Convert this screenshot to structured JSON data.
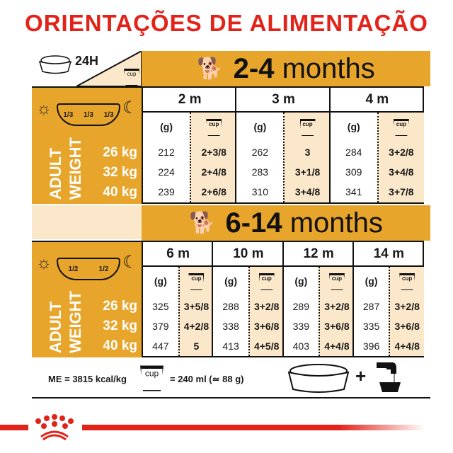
{
  "title": "ORIENTAÇÕES DE ALIMENTAÇÃO",
  "label_24h": "24H",
  "cup_label": "cup",
  "colors": {
    "title_red": "#e2231a",
    "gold": "#e8a52b",
    "cream": "#fbe7c9"
  },
  "sections": [
    {
      "band": "2-4 months",
      "band_num": "2-4",
      "band_word": "months",
      "portions": [
        "1/3",
        "1/3",
        "1/3"
      ],
      "adult_label": "ADULT",
      "weight_label": "WEIGHT",
      "weights": [
        "26 kg",
        "32 kg",
        "40 kg"
      ],
      "grams_label": "(g)",
      "columns": [
        {
          "age": "2 m",
          "grams": [
            "212",
            "224",
            "239"
          ],
          "cups": [
            "2+3/8",
            "2+4/8",
            "2+6/8"
          ]
        },
        {
          "age": "3 m",
          "grams": [
            "262",
            "283",
            "310"
          ],
          "cups": [
            "3",
            "3+1/8",
            "3+4/8"
          ]
        },
        {
          "age": "4 m",
          "grams": [
            "284",
            "309",
            "341"
          ],
          "cups": [
            "3+2/8",
            "3+4/8",
            "3+7/8"
          ]
        }
      ]
    },
    {
      "band": "6-14 months",
      "band_num": "6-14",
      "band_word": "months",
      "portions": [
        "1/2",
        "1/2"
      ],
      "adult_label": "ADULT",
      "weight_label": "WEIGHT",
      "weights": [
        "26 kg",
        "32 kg",
        "40 kg"
      ],
      "grams_label": "(g)",
      "columns": [
        {
          "age": "6 m",
          "grams": [
            "325",
            "379",
            "447"
          ],
          "cups": [
            "3+5/8",
            "4+2/8",
            "5"
          ]
        },
        {
          "age": "10 m",
          "grams": [
            "288",
            "338",
            "413"
          ],
          "cups": [
            "3+2/8",
            "3+6/8",
            "4+5/8"
          ]
        },
        {
          "age": "12 m",
          "grams": [
            "289",
            "339",
            "403"
          ],
          "cups": [
            "3+2/8",
            "3+6/8",
            "4+4/8"
          ]
        },
        {
          "age": "14 m",
          "grams": [
            "287",
            "335",
            "396"
          ],
          "cups": [
            "3+2/8",
            "3+6/8",
            "4+4/8"
          ]
        }
      ]
    }
  ],
  "footer": {
    "energy": "ME = 3815 kcal/kg",
    "cup_equiv": "= 240 ml (≃ 88 g)",
    "plus": "+"
  },
  "icons": [
    "bowl-icon",
    "sun-icon",
    "moon-icon",
    "cup-icon",
    "puppy-icon",
    "dog-icon",
    "water-tap-icon",
    "royal-canin-crown-logo"
  ]
}
